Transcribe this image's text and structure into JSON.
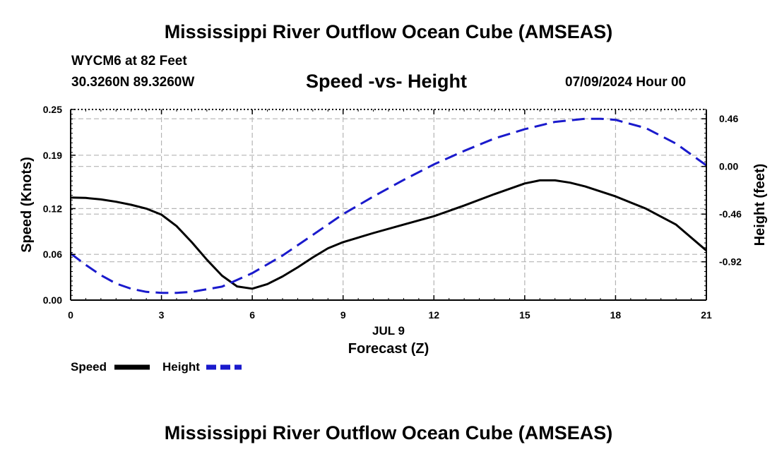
{
  "header": {
    "main_title": "Mississippi River Outflow Ocean Cube (AMSEAS)",
    "station": "WYCM6 at 82 Feet",
    "coords": "30.3260N  89.3260W",
    "subtitle": "Speed -vs- Height",
    "datetime": "07/09/2024 Hour 00",
    "bottom_title": "Mississippi River Outflow Ocean Cube (AMSEAS)"
  },
  "chart_data": {
    "type": "line",
    "title": "Speed -vs- Height",
    "xlabel": "Forecast (Z)",
    "date_label": "JUL 9",
    "ylabel": "Speed (Knots)",
    "y2label": "Height (feet)",
    "xlim": [
      0,
      21
    ],
    "ylim": [
      0,
      0.25
    ],
    "y2lim": [
      -1.29,
      0.55
    ],
    "x_ticks": [
      "0",
      "3",
      "6",
      "9",
      "12",
      "15",
      "18",
      "21"
    ],
    "y_ticks": [
      "0.00",
      "0.06",
      "0.12",
      "0.19",
      "0.25"
    ],
    "y2_ticks": [
      "-0.92",
      "-0.46",
      "0.00",
      "0.46"
    ],
    "grid": true,
    "legend_placement": "bottom-left",
    "colors": {
      "speed": "#000000",
      "height": "#1a1acc",
      "grid": "#b4b4b4"
    },
    "series": [
      {
        "name": "Speed",
        "axis": "left",
        "style": "solid",
        "x": [
          0,
          0.5,
          1,
          1.5,
          2,
          2.5,
          3,
          3.5,
          4,
          4.5,
          5,
          5.5,
          6,
          6.5,
          7,
          7.5,
          8,
          8.5,
          9,
          10,
          11,
          12,
          13,
          14,
          15,
          15.5,
          16,
          16.5,
          17,
          18,
          19,
          20,
          21
        ],
        "values": [
          0.1345,
          0.134,
          0.132,
          0.129,
          0.125,
          0.12,
          0.112,
          0.097,
          0.076,
          0.053,
          0.032,
          0.018,
          0.015,
          0.021,
          0.031,
          0.043,
          0.056,
          0.068,
          0.076,
          0.088,
          0.099,
          0.11,
          0.124,
          0.139,
          0.153,
          0.157,
          0.157,
          0.154,
          0.149,
          0.136,
          0.12,
          0.099,
          0.065
        ]
      },
      {
        "name": "Height",
        "axis": "right",
        "style": "dashed",
        "x": [
          0,
          0.5,
          1,
          1.5,
          2,
          2.5,
          3,
          3.5,
          4,
          5,
          6,
          7,
          8,
          9,
          10,
          11,
          12,
          13,
          14,
          15,
          16,
          17,
          17.5,
          18,
          19,
          20,
          21
        ],
        "values": [
          -0.84,
          -0.95,
          -1.05,
          -1.13,
          -1.18,
          -1.21,
          -1.22,
          -1.22,
          -1.21,
          -1.16,
          -1.03,
          -0.86,
          -0.66,
          -0.46,
          -0.29,
          -0.13,
          0.02,
          0.15,
          0.27,
          0.36,
          0.43,
          0.46,
          0.46,
          0.45,
          0.37,
          0.22,
          0.01
        ]
      }
    ],
    "legend": [
      {
        "name": "Speed",
        "style": "solid"
      },
      {
        "name": "Height",
        "style": "dashed"
      }
    ]
  }
}
